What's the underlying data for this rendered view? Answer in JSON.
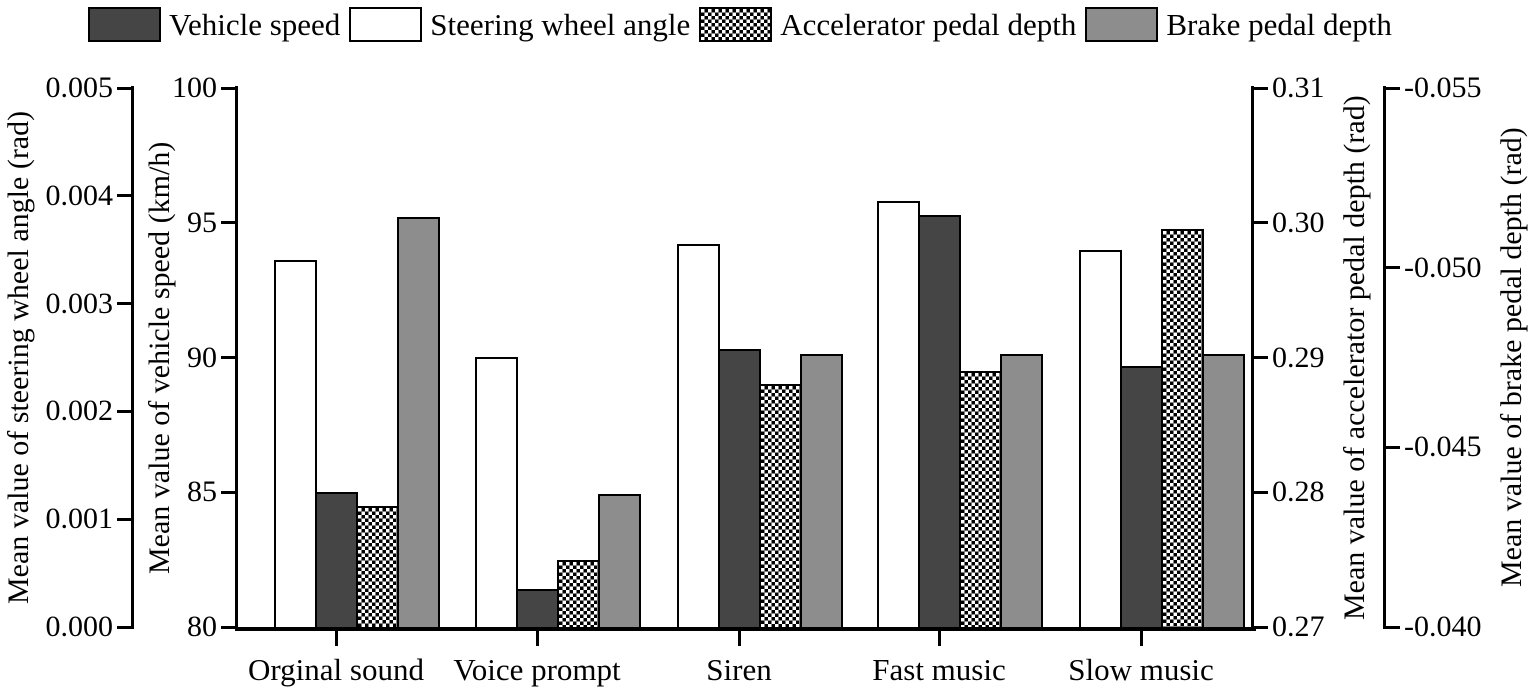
{
  "legend": {
    "items": [
      {
        "label": "Vehicle speed",
        "style": "dark",
        "color": "#454545"
      },
      {
        "label": "Steering wheel angle",
        "style": "white",
        "color": "#ffffff"
      },
      {
        "label": "Accelerator pedal depth",
        "style": "checker",
        "color": "#000000"
      },
      {
        "label": "Brake pedal depth",
        "style": "gray",
        "color": "#8d8d8d"
      }
    ]
  },
  "axes": {
    "steering": {
      "title": "Mean value of steering wheel angle (rad)",
      "ticks": [
        "0.005",
        "0.004",
        "0.003",
        "0.002",
        "0.001",
        "0.000"
      ],
      "min": 0,
      "max": 0.005
    },
    "speed": {
      "title": "Mean value of vehicle speed (km/h)",
      "ticks": [
        "100",
        "95",
        "90",
        "85",
        "80"
      ],
      "min": 80,
      "max": 100
    },
    "accel": {
      "title": "Mean value of accelerator pedal depth (rad)",
      "ticks": [
        "0.31",
        "0.30",
        "0.29",
        "0.28",
        "0.27"
      ],
      "min": 0.27,
      "max": 0.31
    },
    "brake": {
      "title": "Mean value of brake pedal depth (rad)",
      "ticks": [
        "-0.055",
        "-0.050",
        "-0.045",
        "-0.040"
      ],
      "min": -0.04,
      "max": -0.055
    }
  },
  "chart_data": {
    "type": "bar",
    "categories": [
      "Orginal sound",
      "Voice prompt",
      "Siren",
      "Fast music",
      "Slow music"
    ],
    "series": [
      {
        "name": "Steering wheel angle",
        "axis": "steering",
        "style": "white",
        "values": [
          0.0034,
          0.0025,
          0.00355,
          0.00395,
          0.0035
        ]
      },
      {
        "name": "Vehicle speed",
        "axis": "speed",
        "style": "dark",
        "values": [
          85.0,
          81.4,
          90.3,
          95.3,
          89.7
        ]
      },
      {
        "name": "Accelerator pedal depth",
        "axis": "accel",
        "style": "checker",
        "values": [
          0.279,
          0.275,
          0.288,
          0.289,
          0.2995
        ]
      },
      {
        "name": "Brake pedal depth",
        "axis": "brake",
        "style": "gray",
        "values": [
          -0.0514,
          -0.0437,
          -0.0476,
          -0.0476,
          -0.0476
        ]
      }
    ],
    "legend_position": "top",
    "grid": false,
    "axis_ranges": {
      "steering": [
        0,
        0.005
      ],
      "speed": [
        80,
        100
      ],
      "accel": [
        0.27,
        0.31
      ],
      "brake": [
        -0.055,
        -0.04
      ]
    }
  }
}
